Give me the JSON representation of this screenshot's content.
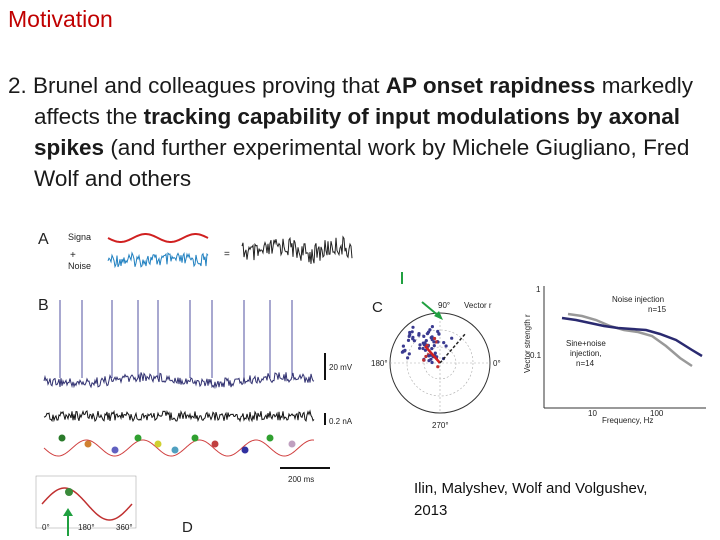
{
  "slide": {
    "title": "Motivation",
    "body": {
      "number": "2.",
      "segments": [
        {
          "text": "Brunel and colleagues proving that ",
          "bold": false
        },
        {
          "text": "AP onset rapidness",
          "bold": true
        },
        {
          "text": " markedly affects the ",
          "bold": false
        },
        {
          "text": "tracking capability of input modulations by axonal spikes",
          "bold": true
        },
        {
          "text": " (and further experimental work by Michele Giugliano, Fred Wolf and others",
          "bold": false
        }
      ]
    },
    "citation_line1": "Ilin, Malyshev, Wolf and Volgushev,",
    "citation_line2": "2013"
  },
  "figure": {
    "panel_a": {
      "label": "A",
      "signal": "Signa",
      "plus": "+",
      "noise": "Noise",
      "equals": "="
    },
    "panel_b": {
      "label": "B",
      "scale_mv": "20 mV",
      "scale_na": "0.2 nA",
      "scale_ms": "200 ms"
    },
    "panel_c": {
      "label": "C",
      "angle_90": "90°",
      "angle_0": "0°",
      "angle_180": "180°",
      "angle_270": "270°",
      "vector": "Vector r"
    },
    "panel_d": {
      "label": "D",
      "angle_0": "0°",
      "angle_180": "180°",
      "angle_360": "360°"
    },
    "plot": {
      "ylabel": "Vector strength r",
      "xlabel": "Frequency, Hz",
      "ytick_1": "1",
      "ytick_01": "0.1",
      "xtick_10": "10",
      "xtick_100": "100",
      "legend_noise_1": "Noise injection",
      "legend_noise_2": "n=15",
      "legend_sine_1": "Sine+noise",
      "legend_sine_2": "injection,",
      "legend_sine_3": "n=14"
    }
  },
  "colors": {
    "title": "#c00000",
    "signal": "#d02020",
    "noise": "#2080c0",
    "arrow": "#20a040"
  }
}
